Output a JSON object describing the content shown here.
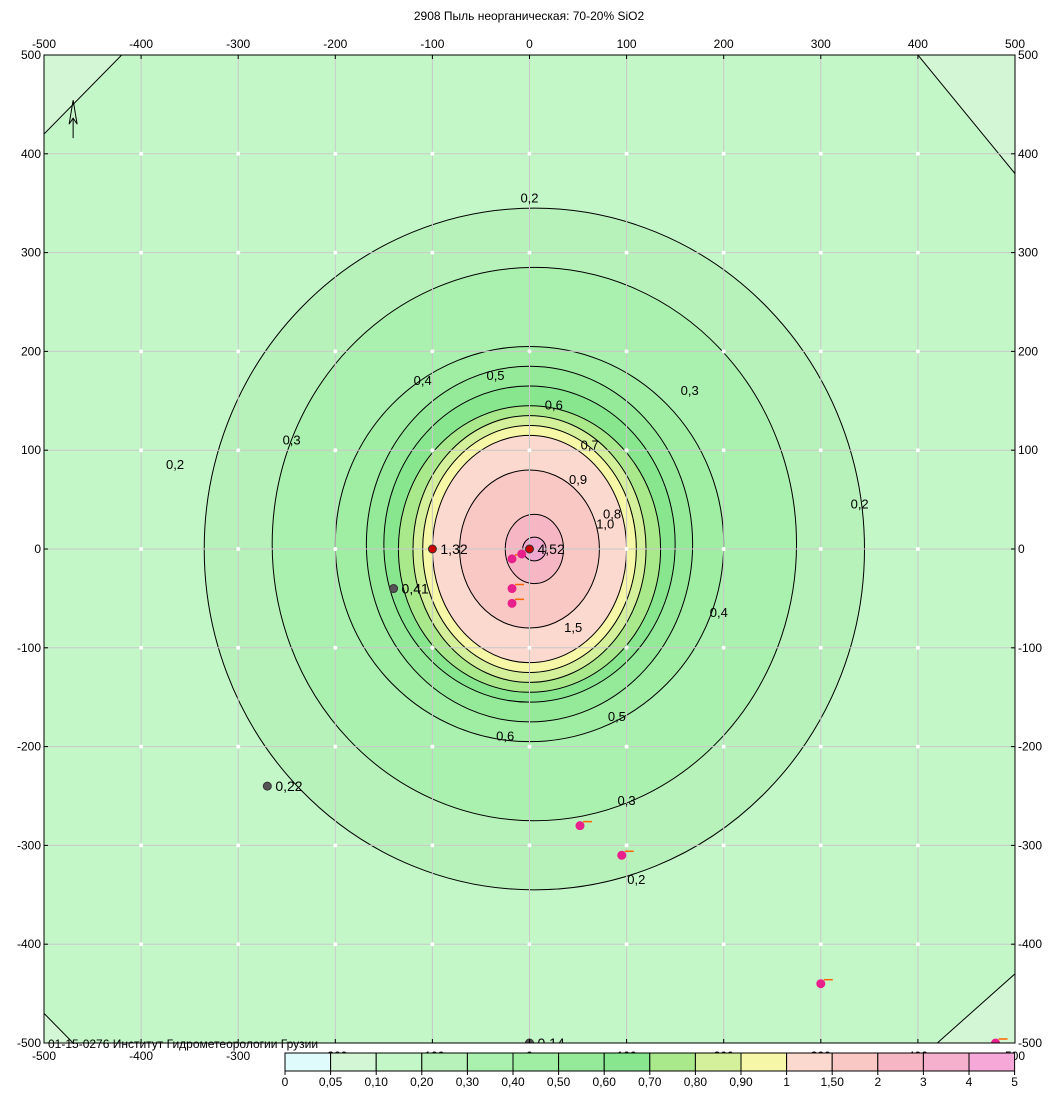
{
  "chart_data": {
    "type": "contour",
    "title": "2908 Пыль неорганическая: 70-20% SiO2",
    "footer": "01-15-0276 Институт Гидрометеорологии Грузии",
    "xlim": [
      -500,
      500
    ],
    "ylim": [
      -500,
      500
    ],
    "x_ticks": [
      "-500",
      "-400",
      "-300",
      "-200",
      "-100",
      "0",
      "100",
      "200",
      "300",
      "400",
      "500"
    ],
    "y_ticks": [
      "500",
      "400",
      "300",
      "200",
      "100",
      "0",
      "-100",
      "-200",
      "-300",
      "-400",
      "-500"
    ],
    "grid": true,
    "background_color": "#c4f7c8",
    "levels": [
      {
        "label": "0,2",
        "rx": 340,
        "ry": 345,
        "cx": 5,
        "cy": 0,
        "color": "#b8f2bb"
      },
      {
        "label": "0,3",
        "rx": 270,
        "ry": 280,
        "cx": 5,
        "cy": 5,
        "color": "#aaf0ae"
      },
      {
        "label": "0,4",
        "rx": 200,
        "ry": 200,
        "cx": 0,
        "cy": 5,
        "color": "#a0eda4"
      },
      {
        "label": "0,5",
        "rx": 168,
        "ry": 180,
        "cx": 0,
        "cy": 5,
        "color": "#94ea99"
      },
      {
        "label": "0,6",
        "rx": 150,
        "ry": 160,
        "cx": 0,
        "cy": 5,
        "color": "#88e68e"
      },
      {
        "label": "0,7",
        "rx": 135,
        "ry": 145,
        "cx": 0,
        "cy": 0,
        "color": "#a9e98c"
      },
      {
        "label": "0,8",
        "rx": 120,
        "ry": 135,
        "cx": 0,
        "cy": 0,
        "color": "#d4f09a"
      },
      {
        "label": "0,9",
        "rx": 110,
        "ry": 125,
        "cx": 0,
        "cy": 0,
        "color": "#f7f7a8"
      },
      {
        "label": "1,0",
        "rx": 100,
        "ry": 115,
        "cx": 0,
        "cy": 0,
        "color": "#fcd9cf"
      },
      {
        "label": "1,5",
        "rx": 72,
        "ry": 80,
        "cx": 0,
        "cy": 0,
        "color": "#f9c8c4"
      },
      {
        "label": "2",
        "rx": 30,
        "ry": 35,
        "cx": 5,
        "cy": 0,
        "color": "#f6b6c4"
      },
      {
        "label": "3",
        "rx": 12,
        "ry": 12,
        "cx": 5,
        "cy": 0,
        "color": "#f0a8d0"
      }
    ],
    "contour_labels": [
      {
        "text": "0,2",
        "x": 0,
        "y": 355
      },
      {
        "text": "0,2",
        "x": -365,
        "y": 85
      },
      {
        "text": "0,2",
        "x": 340,
        "y": 45
      },
      {
        "text": "0,2",
        "x": 110,
        "y": -335
      },
      {
        "text": "0,3",
        "x": 165,
        "y": 160
      },
      {
        "text": "0,3",
        "x": -245,
        "y": 110
      },
      {
        "text": "0,3",
        "x": 100,
        "y": -255
      },
      {
        "text": "0,4",
        "x": -110,
        "y": 170
      },
      {
        "text": "0,4",
        "x": 195,
        "y": -65
      },
      {
        "text": "0,5",
        "x": -35,
        "y": 175
      },
      {
        "text": "0,5",
        "x": 90,
        "y": -170
      },
      {
        "text": "0,6",
        "x": 25,
        "y": 145
      },
      {
        "text": "0,6",
        "x": -25,
        "y": -190
      },
      {
        "text": "0,7",
        "x": 62,
        "y": 105
      },
      {
        "text": "0,8",
        "x": 85,
        "y": 35
      },
      {
        "text": "0,9",
        "x": 50,
        "y": 70
      },
      {
        "text": "1,0",
        "x": 78,
        "y": 25
      },
      {
        "text": "1,5",
        "x": 45,
        "y": -80
      }
    ],
    "points": [
      {
        "label": "4,52",
        "x": 0,
        "y": 0,
        "color": "#cc0000"
      },
      {
        "label": "1,32",
        "x": -100,
        "y": 0,
        "color": "#cc0000"
      },
      {
        "label": "0,41",
        "x": -140,
        "y": -40,
        "color": "#555555"
      },
      {
        "label": "0,22",
        "x": -270,
        "y": -240,
        "color": "#555555"
      },
      {
        "label": "0,14",
        "x": 0,
        "y": -500,
        "color": "#555555"
      }
    ],
    "sources": [
      {
        "x": -18,
        "y": -10
      },
      {
        "x": -8,
        "y": -5
      },
      {
        "x": -18,
        "y": -40
      },
      {
        "x": -18,
        "y": -55
      },
      {
        "x": 52,
        "y": -280
      },
      {
        "x": 95,
        "y": -310
      },
      {
        "x": 300,
        "y": -440
      },
      {
        "x": 480,
        "y": -500
      }
    ],
    "legend": {
      "labels": [
        "0",
        "0,05",
        "0,10",
        "0,20",
        "0,30",
        "0,40",
        "0,50",
        "0,60",
        "0,70",
        "0,80",
        "0,90",
        "1",
        "1,50",
        "2",
        "3",
        "4",
        "5"
      ],
      "colors": [
        "#dffbfb",
        "#d3f7d5",
        "#c4f7c8",
        "#b8f2bb",
        "#aaf0ae",
        "#a0eda4",
        "#94ea99",
        "#88e68e",
        "#a9e98c",
        "#d4f09a",
        "#f7f7a8",
        "#fcd9cf",
        "#f9c8c4",
        "#f6b6c4",
        "#f4b0cc",
        "#f6a8d8"
      ]
    }
  }
}
